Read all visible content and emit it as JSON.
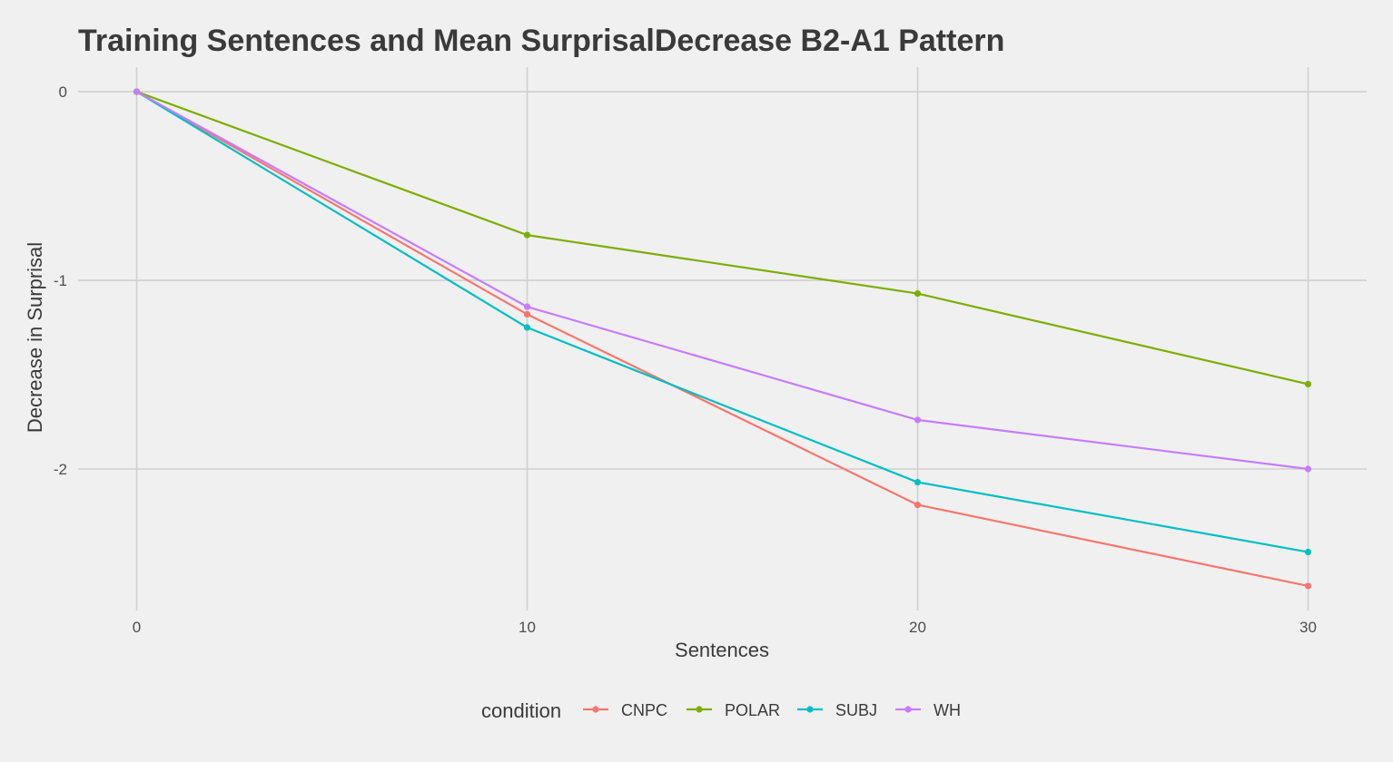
{
  "chart_data": {
    "type": "line",
    "title": "Training Sentences and Mean SurprisalDecrease B2-A1 Pattern",
    "xlabel": "Sentences",
    "ylabel": "Decrease in Surprisal",
    "x": [
      0,
      10,
      20,
      30
    ],
    "x_ticks": [
      0,
      10,
      20,
      30
    ],
    "y_ticks": [
      0,
      -1,
      -2
    ],
    "xlim": [
      -1.5,
      31.5
    ],
    "ylim": [
      -2.75,
      0.13
    ],
    "grid": true,
    "legend_title": "condition",
    "legend_position": "bottom",
    "series": [
      {
        "name": "CNPC",
        "color": "#F8766D",
        "values": [
          0,
          -1.18,
          -2.19,
          -2.62
        ]
      },
      {
        "name": "POLAR",
        "color": "#7CAE00",
        "values": [
          0,
          -0.76,
          -1.07,
          -1.55
        ]
      },
      {
        "name": "SUBJ",
        "color": "#00BFC4",
        "values": [
          0,
          -1.25,
          -2.07,
          -2.44
        ]
      },
      {
        "name": "WH",
        "color": "#C77CFF",
        "values": [
          0,
          -1.14,
          -1.74,
          -2.0
        ]
      }
    ]
  }
}
